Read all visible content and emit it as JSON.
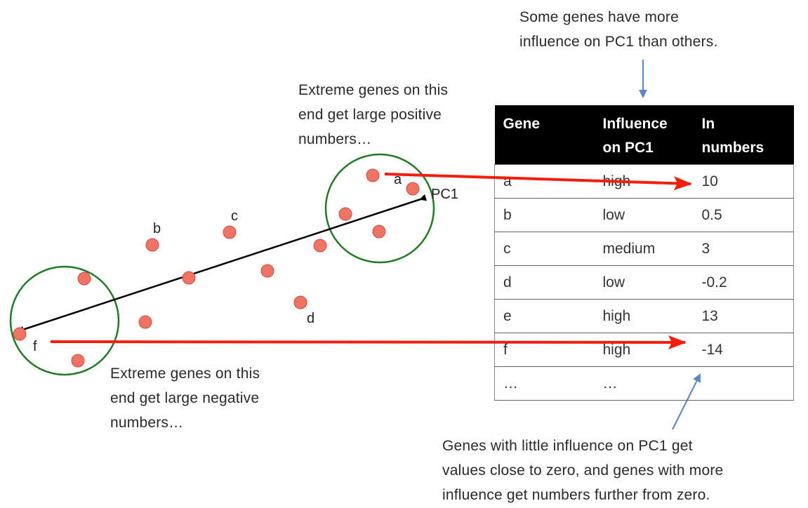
{
  "notes": {
    "top_right": [
      "Some genes have more",
      "influence on PC1 than others."
    ],
    "positive_end": [
      "Extreme genes on this",
      "end get large positive",
      "numbers…"
    ],
    "negative_end": [
      "Extreme genes on this",
      "end get large negative",
      "numbers…"
    ],
    "bottom_right": [
      "Genes with little influence on PC1 get",
      "values close to zero, and genes with more",
      "influence get numbers further from zero."
    ]
  },
  "axis_label": "PC1",
  "point_labels": {
    "a": "a",
    "b": "b",
    "c": "c",
    "d": "d",
    "f": "f"
  },
  "colors": {
    "point": "#ee7466",
    "circle": "#237a23",
    "red_arrow": "#f21e0e",
    "pc_axis": "#000000",
    "pointer_arrow": "#5b86c0",
    "table_header_bg": "#000000"
  },
  "table": {
    "headers": [
      [
        "Gene"
      ],
      [
        "Influence",
        "on PC1"
      ],
      [
        "In",
        "numbers"
      ]
    ],
    "rows": [
      [
        "a",
        "high",
        "10"
      ],
      [
        "b",
        "low",
        "0.5"
      ],
      [
        "c",
        "medium",
        "3"
      ],
      [
        "d",
        "low",
        "-0.2"
      ],
      [
        "e",
        "high",
        "13"
      ],
      [
        "f",
        "high",
        "-14"
      ],
      [
        "…",
        "…",
        ""
      ]
    ]
  }
}
